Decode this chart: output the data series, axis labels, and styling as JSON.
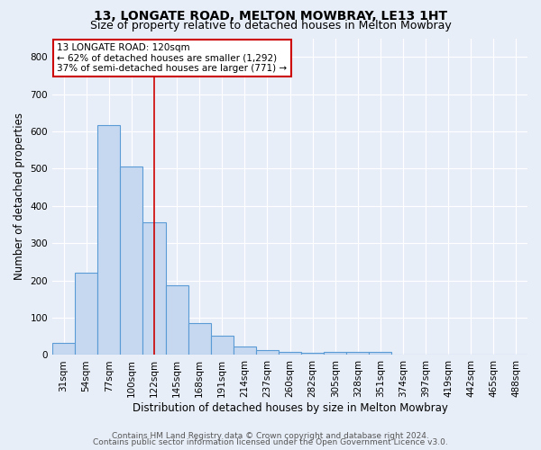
{
  "title": "13, LONGATE ROAD, MELTON MOWBRAY, LE13 1HT",
  "subtitle": "Size of property relative to detached houses in Melton Mowbray",
  "xlabel": "Distribution of detached houses by size in Melton Mowbray",
  "ylabel": "Number of detached properties",
  "footer_line1": "Contains HM Land Registry data © Crown copyright and database right 2024.",
  "footer_line2": "Contains public sector information licensed under the Open Government Licence v3.0.",
  "bar_labels": [
    "31sqm",
    "54sqm",
    "77sqm",
    "100sqm",
    "122sqm",
    "145sqm",
    "168sqm",
    "191sqm",
    "214sqm",
    "237sqm",
    "260sqm",
    "282sqm",
    "305sqm",
    "328sqm",
    "351sqm",
    "374sqm",
    "397sqm",
    "419sqm",
    "442sqm",
    "465sqm",
    "488sqm"
  ],
  "bar_values": [
    33,
    220,
    617,
    507,
    357,
    188,
    85,
    52,
    22,
    14,
    8,
    5,
    9,
    9,
    9,
    0,
    0,
    0,
    0,
    0,
    0
  ],
  "bar_color": "#c5d8f0",
  "bar_edge_color": "#5b9bd5",
  "redline_index": 4,
  "redline_color": "#cc0000",
  "annotation_text": "13 LONGATE ROAD: 120sqm\n← 62% of detached houses are smaller (1,292)\n37% of semi-detached houses are larger (771) →",
  "annotation_box_color": "#ffffff",
  "annotation_box_edge": "#cc0000",
  "ylim": [
    0,
    850
  ],
  "yticks": [
    0,
    100,
    200,
    300,
    400,
    500,
    600,
    700,
    800
  ],
  "bg_color": "#e8eef8",
  "grid_color": "#ffffff",
  "title_fontsize": 10,
  "subtitle_fontsize": 9,
  "axis_label_fontsize": 8.5,
  "tick_fontsize": 7.5,
  "footer_fontsize": 6.5
}
